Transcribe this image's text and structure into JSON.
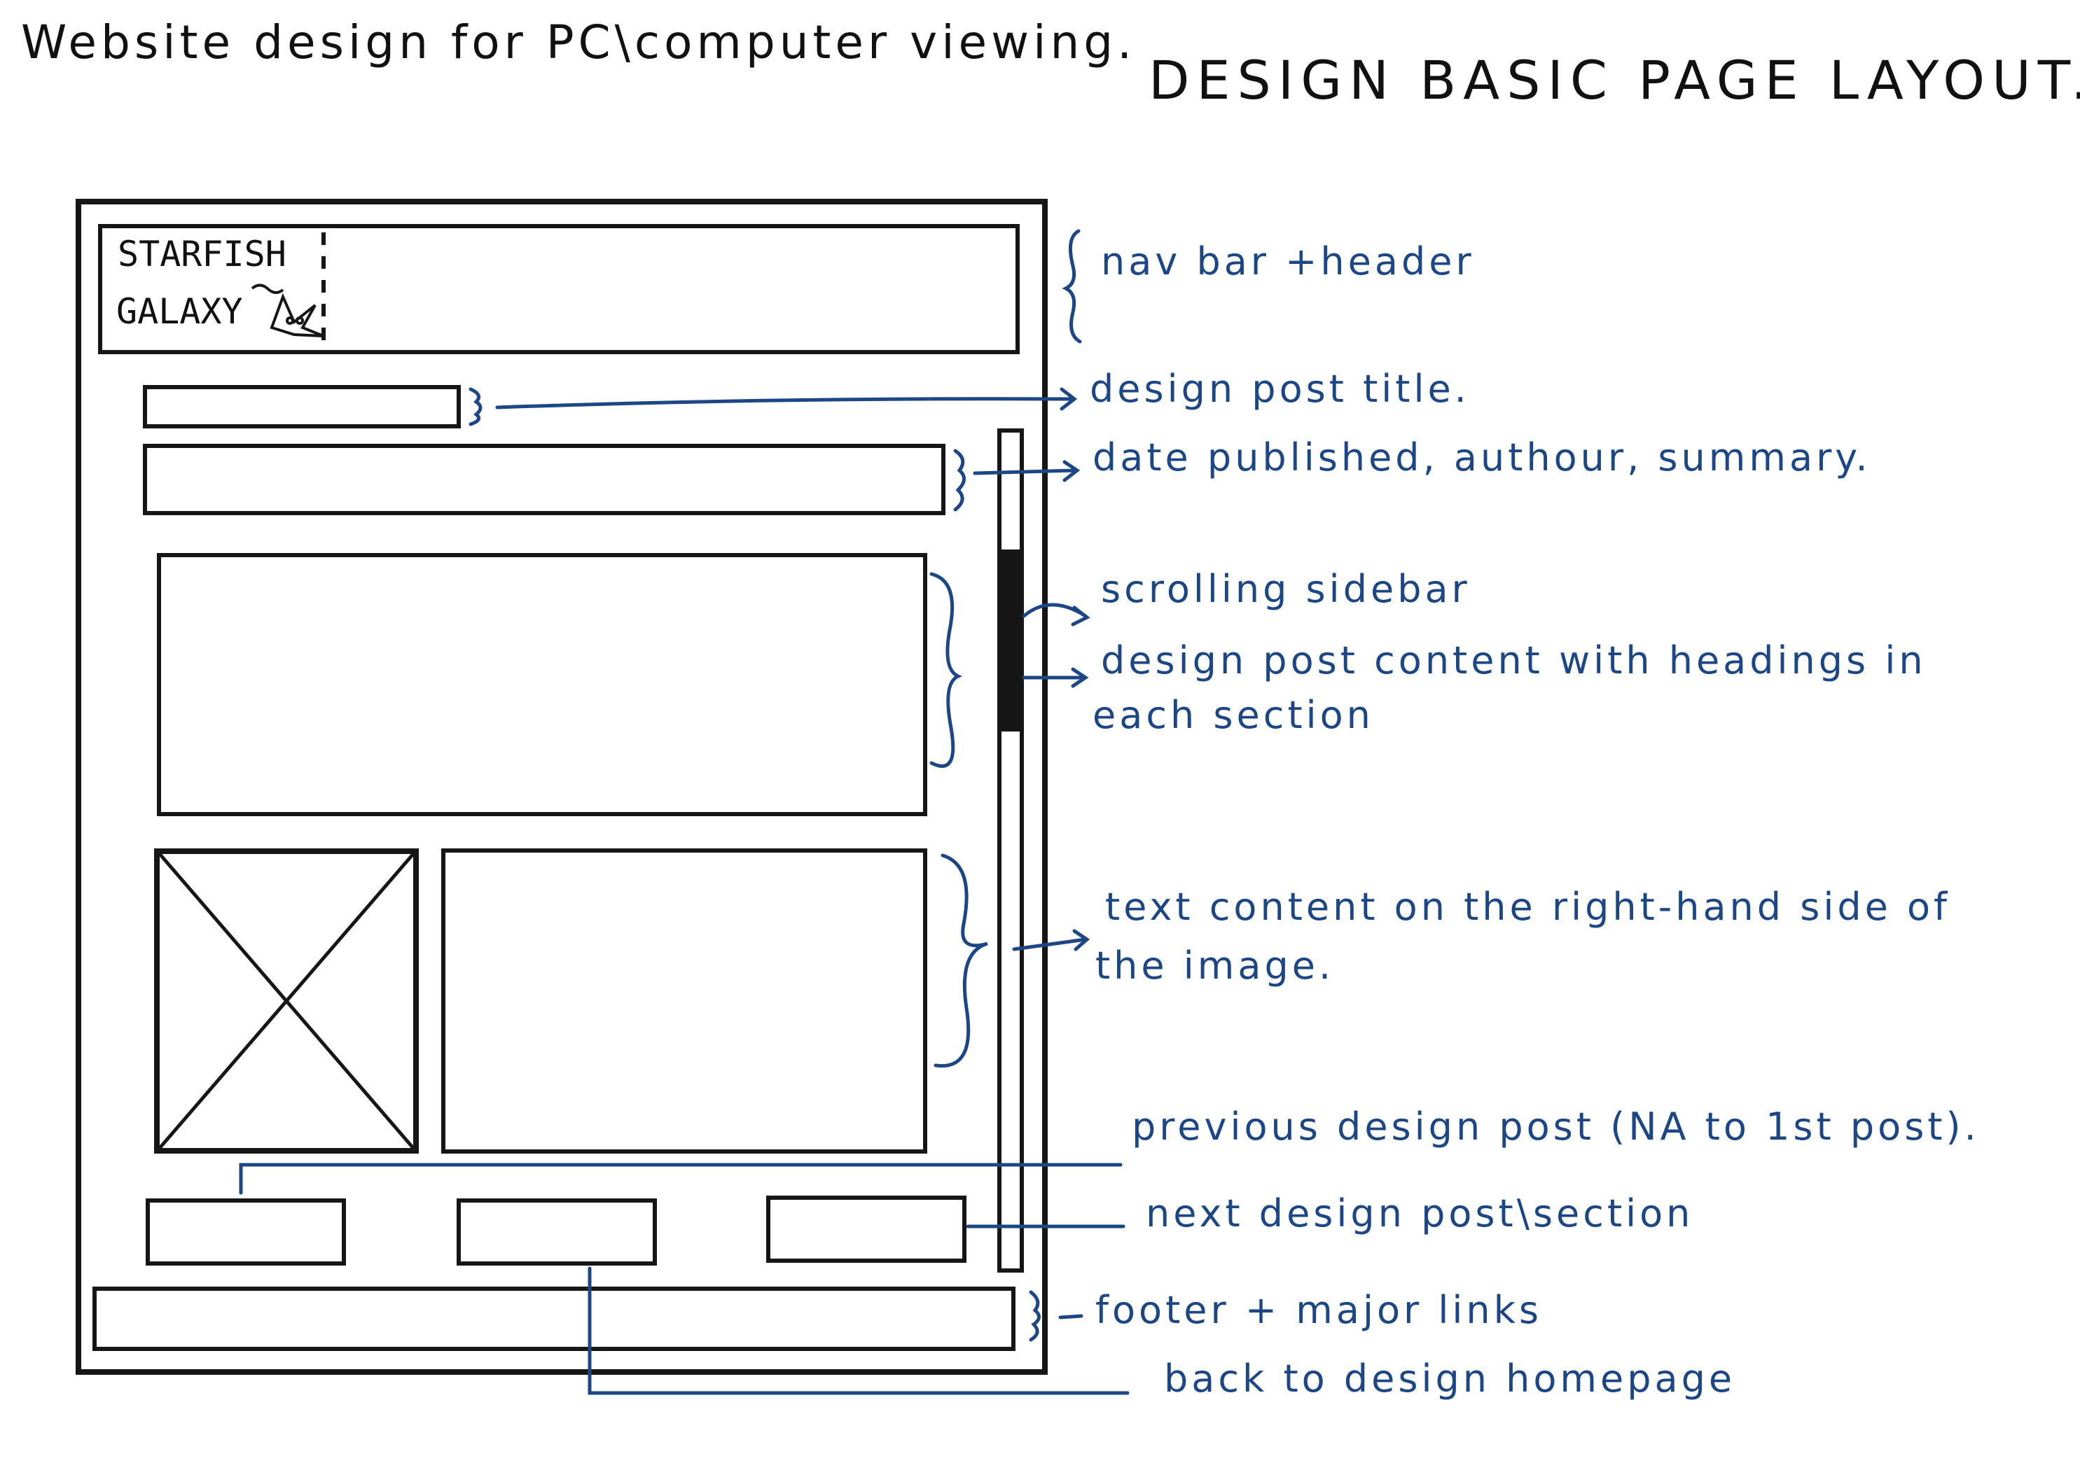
{
  "page": {
    "heading_left": "Website design for PC\\computer viewing.",
    "heading_right": "DESIGN BASIC PAGE LAYOUT."
  },
  "wireframe": {
    "logo_line1": "STARFISH",
    "logo_line2": "GALAXY"
  },
  "annotations": {
    "nav_header": "nav bar +header",
    "post_title": "design post title.",
    "post_meta": "date published, authour, summary.",
    "sidebar": "scrolling sidebar",
    "content_line1": "design post content  with headings in",
    "content_line2": "each section",
    "text_line1": "text content on the right-hand side of",
    "text_line2": "the image.",
    "previous_post": "previous design post (NA to 1st post).",
    "next_post": "next design post\\section",
    "footer": "footer + major links",
    "back_home": "back to design homepage"
  },
  "colors": {
    "ink_black": "#161616",
    "ink_blue": "#1d4685"
  }
}
